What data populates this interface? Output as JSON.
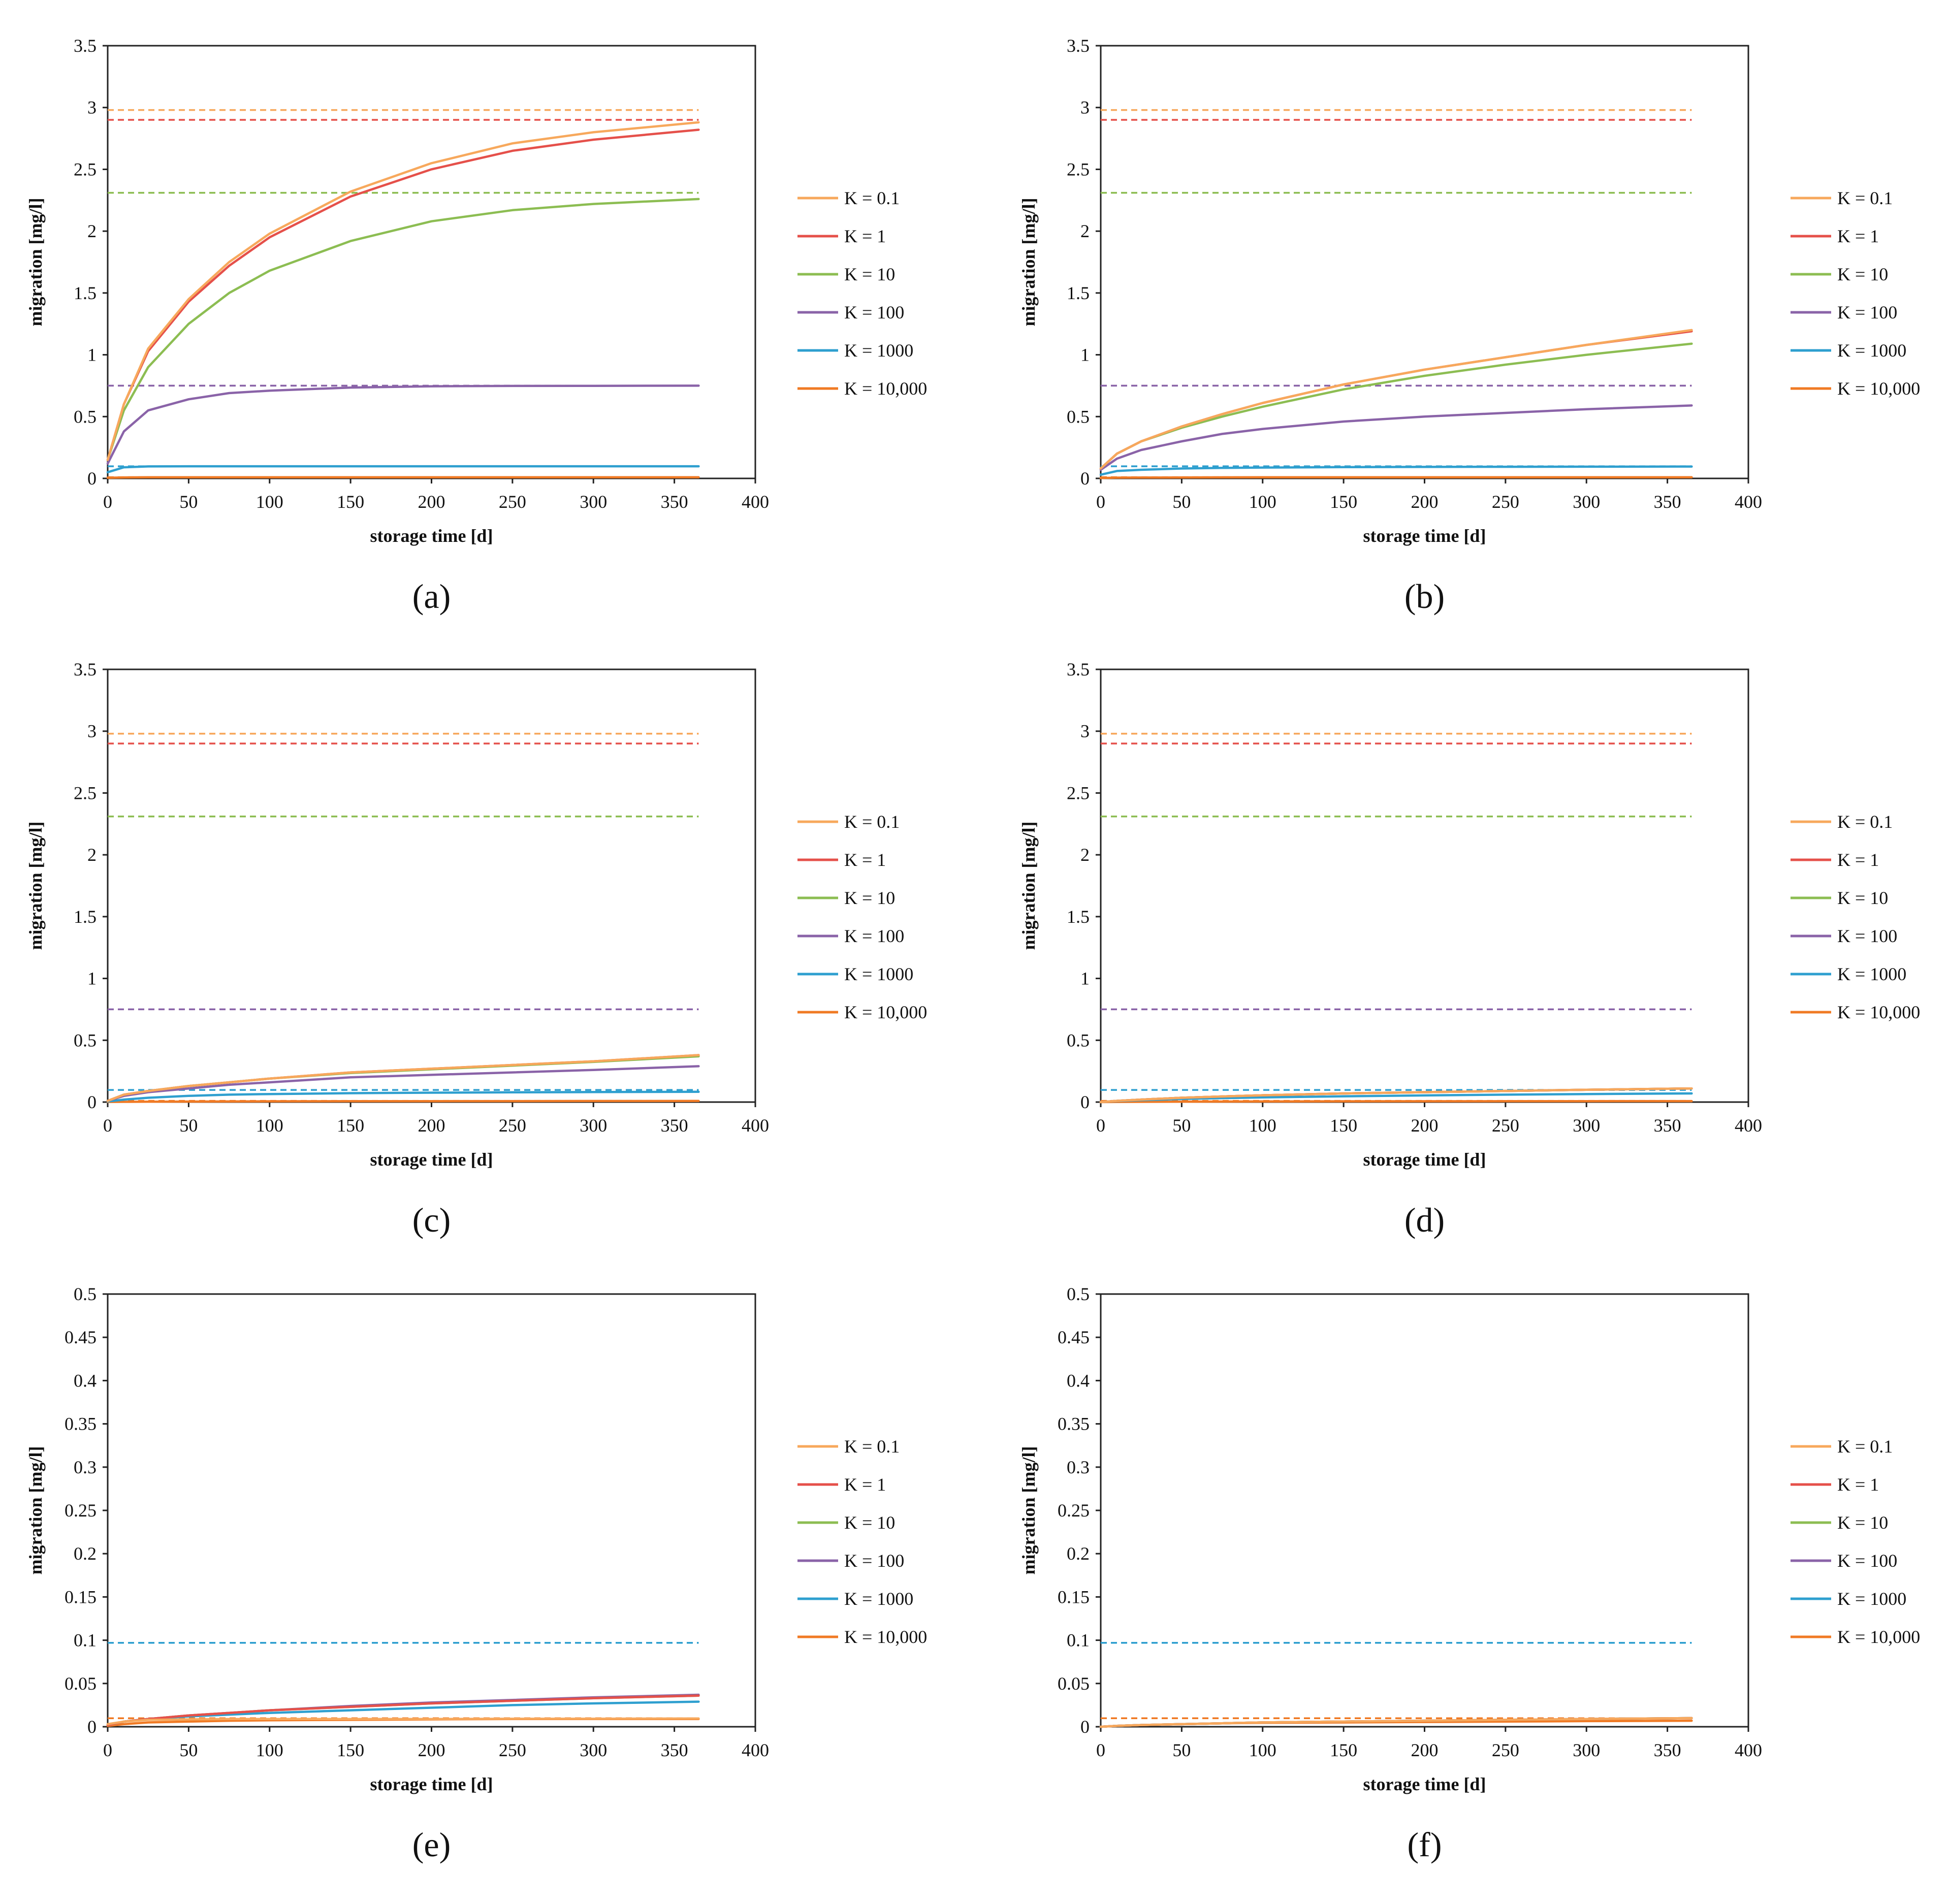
{
  "figure": {
    "legend_labels": [
      "K = 0.1",
      "K = 1",
      "K = 10",
      "K = 100",
      "K = 1000",
      "K = 10,000"
    ],
    "series_colors": [
      "#F7A85C",
      "#E5504A",
      "#8CBD52",
      "#8A63A8",
      "#2E9FCF",
      "#F07A24"
    ]
  },
  "chart_data": [
    {
      "type": "line",
      "label": "(a)",
      "xlabel": "storage time [d]",
      "ylabel": "migration [mg/l]",
      "xlim": [
        0,
        400
      ],
      "ylim": [
        0,
        3.5
      ],
      "xticks": [
        "0",
        "50",
        "100",
        "150",
        "200",
        "250",
        "300",
        "350",
        "400"
      ],
      "yticks": [
        "0",
        "0.5",
        "1",
        "1.5",
        "2",
        "2.5",
        "3",
        "3.5"
      ],
      "x": [
        0,
        10,
        25,
        50,
        75,
        100,
        150,
        200,
        250,
        300,
        365
      ],
      "series": [
        {
          "name": "K = 0.1",
          "values": [
            0.15,
            0.6,
            1.05,
            1.45,
            1.75,
            1.98,
            2.32,
            2.55,
            2.71,
            2.8,
            2.88
          ],
          "plateau": 2.98
        },
        {
          "name": "K = 1",
          "values": [
            0.15,
            0.6,
            1.03,
            1.43,
            1.72,
            1.95,
            2.28,
            2.5,
            2.65,
            2.74,
            2.82
          ],
          "plateau": 2.9
        },
        {
          "name": "K = 10",
          "values": [
            0.15,
            0.55,
            0.9,
            1.25,
            1.5,
            1.68,
            1.92,
            2.08,
            2.17,
            2.22,
            2.26
          ],
          "plateau": 2.31
        },
        {
          "name": "K = 100",
          "values": [
            0.12,
            0.38,
            0.55,
            0.64,
            0.69,
            0.71,
            0.735,
            0.745,
            0.748,
            0.749,
            0.75
          ],
          "plateau": 0.75
        },
        {
          "name": "K = 1000",
          "values": [
            0.05,
            0.09,
            0.097,
            0.098,
            0.098,
            0.098,
            0.098,
            0.098,
            0.098,
            0.098,
            0.098
          ],
          "plateau": 0.098
        },
        {
          "name": "K = 10,000",
          "values": [
            0.005,
            0.008,
            0.009,
            0.0095,
            0.0095,
            0.0095,
            0.0095,
            0.0095,
            0.0095,
            0.0095,
            0.0095
          ],
          "plateau": 0.0098
        }
      ]
    },
    {
      "type": "line",
      "label": "(b)",
      "xlabel": "storage time [d]",
      "ylabel": "migration [mg/l]",
      "xlim": [
        0,
        400
      ],
      "ylim": [
        0,
        3.5
      ],
      "xticks": [
        "0",
        "50",
        "100",
        "150",
        "200",
        "250",
        "300",
        "350",
        "400"
      ],
      "yticks": [
        "0",
        "0.5",
        "1",
        "1.5",
        "2",
        "2.5",
        "3",
        "3.5"
      ],
      "x": [
        0,
        10,
        25,
        50,
        75,
        100,
        150,
        200,
        250,
        300,
        365
      ],
      "series": [
        {
          "name": "K = 0.1",
          "values": [
            0.08,
            0.2,
            0.3,
            0.42,
            0.52,
            0.61,
            0.76,
            0.88,
            0.98,
            1.08,
            1.2
          ],
          "plateau": 2.98
        },
        {
          "name": "K = 1",
          "values": [
            0.08,
            0.2,
            0.3,
            0.42,
            0.52,
            0.61,
            0.76,
            0.88,
            0.98,
            1.08,
            1.19
          ],
          "plateau": 2.9
        },
        {
          "name": "K = 10",
          "values": [
            0.08,
            0.2,
            0.3,
            0.41,
            0.5,
            0.58,
            0.72,
            0.83,
            0.92,
            1.0,
            1.09
          ],
          "plateau": 2.31
        },
        {
          "name": "K = 100",
          "values": [
            0.07,
            0.16,
            0.23,
            0.3,
            0.36,
            0.4,
            0.46,
            0.5,
            0.53,
            0.56,
            0.59
          ],
          "plateau": 0.75
        },
        {
          "name": "K = 1000",
          "values": [
            0.03,
            0.06,
            0.07,
            0.08,
            0.085,
            0.088,
            0.091,
            0.093,
            0.094,
            0.095,
            0.096
          ],
          "plateau": 0.098
        },
        {
          "name": "K = 10,000",
          "values": [
            0.003,
            0.006,
            0.007,
            0.008,
            0.0085,
            0.009,
            0.009,
            0.0093,
            0.0094,
            0.0095,
            0.0095
          ],
          "plateau": 0.0098
        }
      ]
    },
    {
      "type": "line",
      "label": "(c)",
      "xlabel": "storage time [d]",
      "ylabel": "migration [mg/l]",
      "xlim": [
        0,
        400
      ],
      "ylim": [
        0,
        3.5
      ],
      "xticks": [
        "0",
        "50",
        "100",
        "150",
        "200",
        "250",
        "300",
        "350",
        "400"
      ],
      "yticks": [
        "0",
        "0.5",
        "1",
        "1.5",
        "2",
        "2.5",
        "3",
        "3.5"
      ],
      "x": [
        0,
        10,
        25,
        50,
        75,
        100,
        150,
        200,
        250,
        300,
        365
      ],
      "series": [
        {
          "name": "K = 0.1",
          "values": [
            0.01,
            0.06,
            0.09,
            0.13,
            0.16,
            0.19,
            0.24,
            0.27,
            0.3,
            0.33,
            0.38
          ],
          "plateau": 2.98
        },
        {
          "name": "K = 1",
          "values": [
            0.01,
            0.06,
            0.09,
            0.13,
            0.16,
            0.19,
            0.24,
            0.27,
            0.3,
            0.33,
            0.38
          ],
          "plateau": 2.9
        },
        {
          "name": "K = 10",
          "values": [
            0.01,
            0.06,
            0.09,
            0.13,
            0.16,
            0.19,
            0.235,
            0.265,
            0.295,
            0.325,
            0.37
          ],
          "plateau": 2.31
        },
        {
          "name": "K = 100",
          "values": [
            0.01,
            0.05,
            0.08,
            0.11,
            0.14,
            0.16,
            0.2,
            0.22,
            0.24,
            0.26,
            0.29
          ],
          "plateau": 0.75
        },
        {
          "name": "K = 1000",
          "values": [
            0.005,
            0.02,
            0.035,
            0.05,
            0.06,
            0.065,
            0.072,
            0.076,
            0.079,
            0.081,
            0.083
          ],
          "plateau": 0.098
        },
        {
          "name": "K = 10,000",
          "values": [
            0.001,
            0.002,
            0.003,
            0.004,
            0.005,
            0.006,
            0.007,
            0.0075,
            0.008,
            0.0085,
            0.009
          ],
          "plateau": 0.0098
        }
      ]
    },
    {
      "type": "line",
      "label": "(d)",
      "xlabel": "storage time [d]",
      "ylabel": "migration [mg/l]",
      "xlim": [
        0,
        400
      ],
      "ylim": [
        0,
        3.5
      ],
      "xticks": [
        "0",
        "50",
        "100",
        "150",
        "200",
        "250",
        "300",
        "350",
        "400"
      ],
      "yticks": [
        "0",
        "0.5",
        "1",
        "1.5",
        "2",
        "2.5",
        "3",
        "3.5"
      ],
      "x": [
        0,
        10,
        25,
        50,
        75,
        100,
        150,
        200,
        250,
        300,
        365
      ],
      "series": [
        {
          "name": "K = 0.1",
          "values": [
            0.0,
            0.01,
            0.02,
            0.035,
            0.045,
            0.055,
            0.07,
            0.08,
            0.09,
            0.1,
            0.11
          ],
          "plateau": 2.98
        },
        {
          "name": "K = 1",
          "values": [
            0.0,
            0.01,
            0.02,
            0.035,
            0.045,
            0.055,
            0.07,
            0.08,
            0.09,
            0.1,
            0.11
          ],
          "plateau": 2.9
        },
        {
          "name": "K = 10",
          "values": [
            0.0,
            0.01,
            0.02,
            0.035,
            0.045,
            0.055,
            0.07,
            0.08,
            0.09,
            0.1,
            0.11
          ],
          "plateau": 2.31
        },
        {
          "name": "K = 100",
          "values": [
            0.0,
            0.01,
            0.02,
            0.035,
            0.045,
            0.055,
            0.07,
            0.08,
            0.09,
            0.1,
            0.11
          ],
          "plateau": 0.75
        },
        {
          "name": "K = 1000",
          "values": [
            0.0,
            0.008,
            0.015,
            0.025,
            0.032,
            0.038,
            0.047,
            0.054,
            0.06,
            0.065,
            0.07
          ],
          "plateau": 0.098
        },
        {
          "name": "K = 10,000",
          "values": [
            0.0,
            0.001,
            0.002,
            0.003,
            0.004,
            0.005,
            0.006,
            0.0065,
            0.007,
            0.0075,
            0.008
          ],
          "plateau": 0.0098
        }
      ]
    },
    {
      "type": "line",
      "label": "(e)",
      "xlabel": "storage time [d]",
      "ylabel": "migration [mg/l]",
      "xlim": [
        0,
        400
      ],
      "ylim": [
        0,
        0.5
      ],
      "xticks": [
        "0",
        "50",
        "100",
        "150",
        "200",
        "250",
        "300",
        "350",
        "400"
      ],
      "yticks": [
        "0",
        "0.05",
        "0.1",
        "0.15",
        "0.2",
        "0.25",
        "0.3",
        "0.35",
        "0.4",
        "0.45",
        "0.5"
      ],
      "x": [
        0,
        10,
        25,
        50,
        75,
        100,
        150,
        200,
        250,
        300,
        365
      ],
      "series": [
        {
          "name": "K = 0.1",
          "values": [
            0.003,
            0.006,
            0.008,
            0.0085,
            0.009,
            0.009,
            0.009,
            0.009,
            0.0092,
            0.0093,
            0.0095
          ],
          "plateau": 0.0098
        },
        {
          "name": "K = 1",
          "values": [
            0.002,
            0.006,
            0.009,
            0.013,
            0.016,
            0.019,
            0.023,
            0.027,
            0.03,
            0.033,
            0.036
          ],
          "plateau": 0.0098
        },
        {
          "name": "K = 10",
          "values": [
            0.002,
            0.006,
            0.009,
            0.013,
            0.016,
            0.019,
            0.023,
            0.027,
            0.03,
            0.033,
            0.036
          ],
          "plateau": 0.0098
        },
        {
          "name": "K = 100",
          "values": [
            0.002,
            0.006,
            0.009,
            0.013,
            0.016,
            0.019,
            0.024,
            0.028,
            0.031,
            0.034,
            0.037
          ],
          "plateau": 0.0098
        },
        {
          "name": "K = 1000",
          "values": [
            0.002,
            0.006,
            0.009,
            0.012,
            0.014,
            0.016,
            0.019,
            0.022,
            0.025,
            0.027,
            0.029
          ],
          "plateau": 0.097
        },
        {
          "name": "K = 10,000",
          "values": [
            0.001,
            0.003,
            0.005,
            0.006,
            0.007,
            0.0075,
            0.008,
            0.0085,
            0.009,
            0.009,
            0.009
          ],
          "plateau": 0.0098
        }
      ]
    },
    {
      "type": "line",
      "label": "(f)",
      "xlabel": "storage time [d]",
      "ylabel": "migration [mg/l]",
      "xlim": [
        0,
        400
      ],
      "ylim": [
        0,
        0.5
      ],
      "xticks": [
        "0",
        "50",
        "100",
        "150",
        "200",
        "250",
        "300",
        "350",
        "400"
      ],
      "yticks": [
        "0",
        "0.05",
        "0.1",
        "0.15",
        "0.2",
        "0.25",
        "0.3",
        "0.35",
        "0.4",
        "0.45",
        "0.5"
      ],
      "x": [
        0,
        10,
        25,
        50,
        75,
        100,
        150,
        200,
        250,
        300,
        365
      ],
      "series": [
        {
          "name": "K = 0.1",
          "values": [
            0.0,
            0.001,
            0.002,
            0.003,
            0.004,
            0.005,
            0.006,
            0.007,
            0.008,
            0.009,
            0.01
          ],
          "plateau": 0.0098
        },
        {
          "name": "K = 1",
          "values": [
            0.0,
            0.001,
            0.002,
            0.003,
            0.004,
            0.005,
            0.006,
            0.007,
            0.008,
            0.009,
            0.01
          ],
          "plateau": 0.0098
        },
        {
          "name": "K = 10",
          "values": [
            0.0,
            0.001,
            0.002,
            0.003,
            0.004,
            0.005,
            0.006,
            0.007,
            0.008,
            0.009,
            0.01
          ],
          "plateau": 0.0098
        },
        {
          "name": "K = 100",
          "values": [
            0.0,
            0.001,
            0.002,
            0.003,
            0.004,
            0.005,
            0.006,
            0.007,
            0.008,
            0.009,
            0.01
          ],
          "plateau": 0.0098
        },
        {
          "name": "K = 1000",
          "values": [
            0.0,
            0.001,
            0.002,
            0.003,
            0.004,
            0.005,
            0.006,
            0.007,
            0.008,
            0.009,
            0.01
          ],
          "plateau": 0.097
        },
        {
          "name": "K = 10,000",
          "values": [
            0.0,
            0.001,
            0.002,
            0.003,
            0.004,
            0.0045,
            0.005,
            0.0055,
            0.006,
            0.0065,
            0.007
          ],
          "plateau": 0.0098
        }
      ]
    }
  ]
}
